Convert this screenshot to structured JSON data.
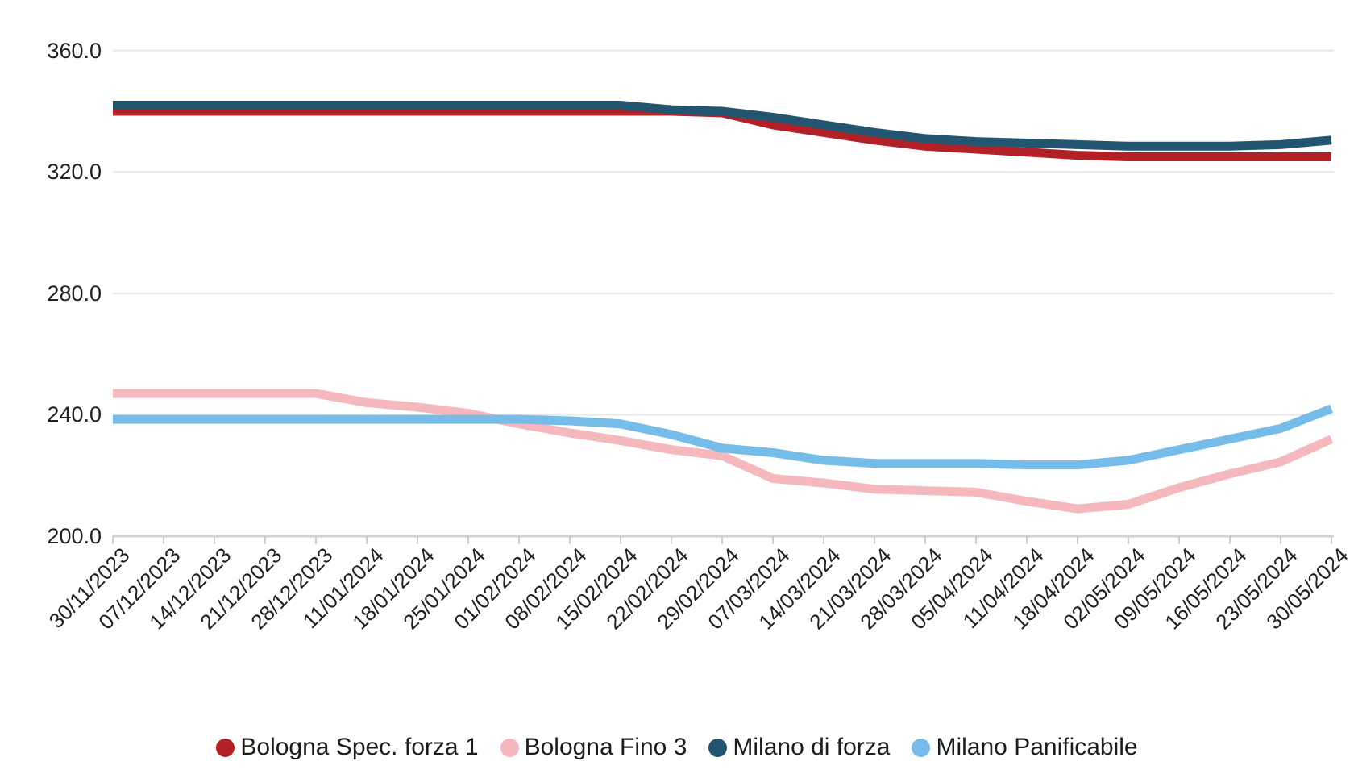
{
  "chart_data": {
    "type": "line",
    "title": "",
    "xlabel": "",
    "ylabel": "",
    "grid": true,
    "legend_position": "bottom",
    "y_axis": {
      "min": 200,
      "max": 360,
      "gridline_step": 40
    },
    "y_tick_labels": [
      "360.0",
      "320.0",
      "280.0",
      "240.0",
      "200.0"
    ],
    "x_tick_labels": [
      "30/11/2023",
      "07/12/2023",
      "14/12/2023",
      "21/12/2023",
      "28/12/2023",
      "11/01/2024",
      "18/01/2024",
      "25/01/2024",
      "01/02/2024",
      "08/02/2024",
      "15/02/2024",
      "22/02/2024",
      "29/02/2024",
      "07/03/2024",
      "14/03/2024",
      "21/03/2024",
      "28/03/2024",
      "05/04/2024",
      "11/04/2024",
      "18/04/2024",
      "02/05/2024",
      "09/05/2024",
      "16/05/2024",
      "23/05/2024",
      "30/05/2024"
    ],
    "series": [
      {
        "name": "Bologna Spec. forza 1",
        "color": "#b22126",
        "values": [
          340,
          340,
          340,
          340,
          340,
          340,
          340,
          340,
          340,
          340,
          340,
          340,
          339.5,
          335.5,
          333,
          330.5,
          328.5,
          327.5,
          326.5,
          325.5,
          325,
          325,
          325,
          325,
          325
        ]
      },
      {
        "name": "Bologna Fino 3",
        "color": "#f5b8bd",
        "values": [
          247,
          247,
          247,
          247,
          247,
          244,
          242.5,
          240.5,
          237,
          234,
          231.5,
          228.5,
          226.5,
          219,
          217.5,
          215.5,
          215,
          214.5,
          211.5,
          209,
          210.5,
          216,
          220.5,
          224.5,
          232
        ]
      },
      {
        "name": "Milano di forza",
        "color": "#235570",
        "values": [
          342,
          342,
          342,
          342,
          342,
          342,
          342,
          342,
          342,
          342,
          342,
          340.5,
          340,
          338,
          335.5,
          333,
          331,
          330,
          329.5,
          329,
          328.5,
          328.5,
          328.5,
          329,
          330.5
        ]
      },
      {
        "name": "Milano Panificabile",
        "color": "#76bce8",
        "values": [
          238.5,
          238.5,
          238.5,
          238.5,
          238.5,
          238.5,
          238.5,
          238.5,
          238.5,
          238,
          237,
          233.5,
          229,
          227.5,
          225,
          224,
          224,
          224,
          223.5,
          223.5,
          225,
          228.5,
          232,
          235.5,
          242
        ]
      }
    ]
  },
  "style": {
    "gridline_color": "#e8e8e8",
    "baseline_color": "#d2d2d2",
    "tick_color": "#cdcdcd",
    "text_color": "#202020",
    "background": "#ffffff",
    "line_width": 11
  }
}
